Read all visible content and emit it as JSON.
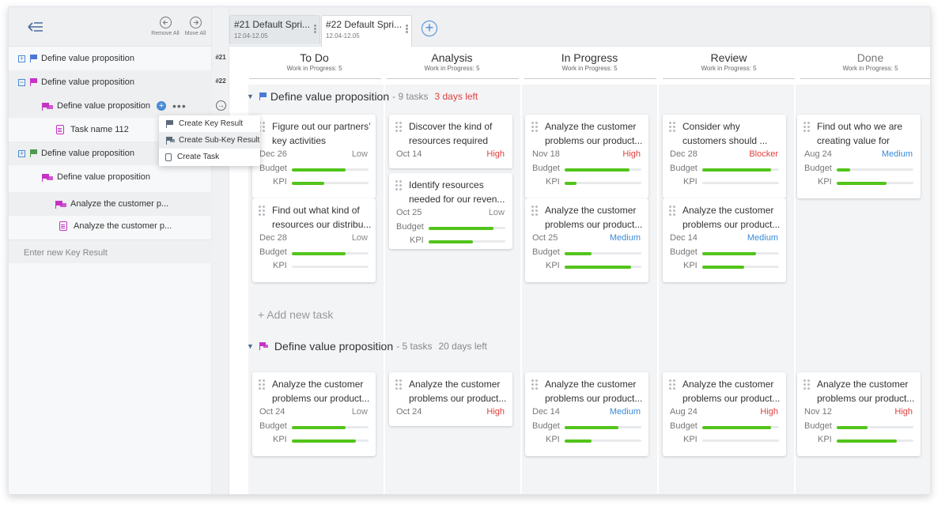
{
  "left_panel": {
    "remove_all": "Remove All",
    "move_all": "Move All",
    "tree": [
      {
        "label": "Define value proposition",
        "sprint": "#21"
      },
      {
        "label": "Define value proposition",
        "sprint": "#22"
      },
      {
        "label": "Define value proposition"
      },
      {
        "label": "Task name 112"
      },
      {
        "label": "Define value proposition"
      },
      {
        "label": "Define value proposition"
      },
      {
        "label": "Analyze the customer p..."
      },
      {
        "label": "Analyze the customer p..."
      }
    ],
    "enter_placeholder": "Enter new Key Result",
    "context_menu": [
      "Create Key Result",
      "Create Sub-Key Result",
      "Create Task"
    ]
  },
  "tabs": [
    {
      "title": "#21  Default Spri...",
      "date": "12.04-12.05"
    },
    {
      "title": "#22  Default Spri...",
      "date": "12.04-12.05"
    }
  ],
  "columns": [
    {
      "name": "To Do",
      "wip": "Work in Progress: 5"
    },
    {
      "name": "Analysis",
      "wip": "Work in Progress: 5"
    },
    {
      "name": "In Progress",
      "wip": "Work in Progress: 5"
    },
    {
      "name": "Review",
      "wip": "Work in Progress: 5"
    },
    {
      "name": "Done",
      "wip": "Work in Progress: 5"
    }
  ],
  "swimlanes": [
    {
      "title": "Define value proposition",
      "count": "- 9 tasks",
      "days": "3 days left"
    },
    {
      "title": "Define value proposition",
      "count": "- 5 tasks",
      "days": "20 days left"
    }
  ],
  "labels": {
    "budget": "Budget",
    "kpi": "KPI",
    "add_task": "+ Add new task"
  },
  "colors": {
    "accent": "#4a8ad4",
    "progress": "#52c41a",
    "high": "#e04040",
    "medium": "#3a8ad8",
    "flag_purple": "#c632c6"
  },
  "cards": [
    {
      "title": "Figure out our partners’ key activities",
      "date": "Dec 26",
      "priority": "Low",
      "budget": 0.7,
      "kpi": 0.42
    },
    {
      "title": "Find out what kind of resources our distribu...",
      "date": "Dec 28",
      "priority": "Low",
      "budget": 0.7,
      "kpi": 0.0
    },
    {
      "title": "Discover the kind of resources required",
      "date": "Oct 14",
      "priority": "High"
    },
    {
      "title": "Identify resources needed for our reven...",
      "date": "Oct 25",
      "priority": "Low",
      "budget": 0.85,
      "kpi": 0.58
    },
    {
      "title": "Analyze the customer problems our product...",
      "date": "Nov 18",
      "priority": "High",
      "budget": 0.85,
      "kpi": 0.15
    },
    {
      "title": "Analyze the customer problems our product...",
      "date": "Oct 25",
      "priority": "Medium",
      "budget": 0.35,
      "kpi": 0.87
    },
    {
      "title": "Consider why customers should ...",
      "date": "Dec 28",
      "priority": "Blocker",
      "budget": 0.9,
      "kpi": 0.0
    },
    {
      "title": "Analyze the customer problems our product...",
      "date": "Dec 14",
      "priority": "Medium",
      "budget": 0.7,
      "kpi": 0.55
    },
    {
      "title": "Find out who we are creating value for",
      "date": "Aug 24",
      "priority": "Medium",
      "budget": 0.18,
      "kpi": 0.65
    },
    {
      "title": "Analyze the customer problems our product...",
      "date": "Oct 24",
      "priority": "Low",
      "budget": 0.7,
      "kpi": 0.84
    },
    {
      "title": "Analyze the customer problems our product...",
      "date": "Oct 24",
      "priority": "High"
    },
    {
      "title": "Analyze the customer problems our product...",
      "date": "Dec 14",
      "priority": "Medium",
      "budget": 0.7,
      "kpi": 0.35
    },
    {
      "title": "Analyze the customer problems our product...",
      "date": "Aug 24",
      "priority": "High",
      "budget": 0.9,
      "kpi": 0.0
    },
    {
      "title": "Analyze the customer problems our product...",
      "date": "Nov 12",
      "priority": "High",
      "budget": 0.4,
      "kpi": 0.78
    }
  ]
}
